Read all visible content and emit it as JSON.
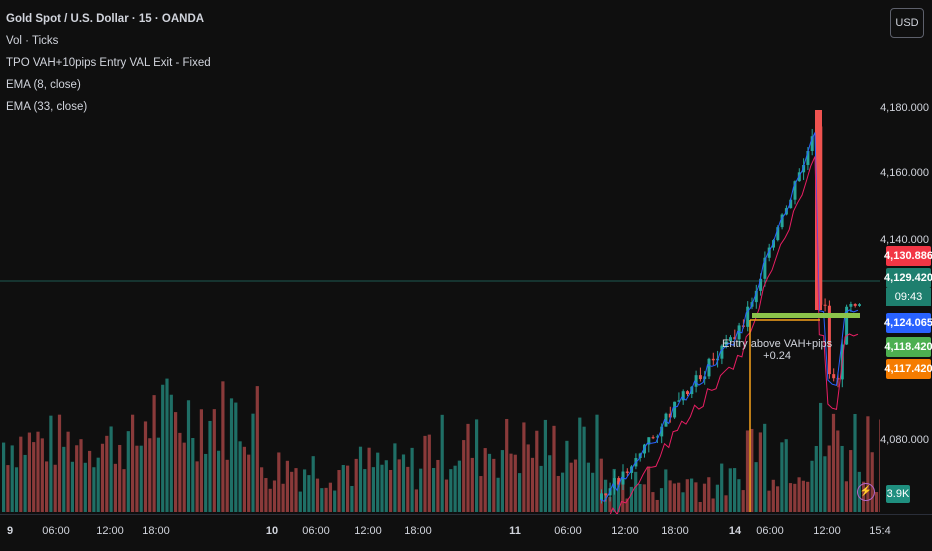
{
  "legend": {
    "title": "Gold Spot / U.S. Dollar · 15 · OANDA",
    "vol": "Vol · Ticks",
    "tpo": "TPO VAH+10pips Entry VAL Exit - Fixed",
    "ema8": "EMA (8, close)",
    "ema33": "EMA (33, close)"
  },
  "currency": "USD",
  "price_ticks": [
    "4,180.000",
    "4,160.000",
    "4,140.000",
    "4,080.000"
  ],
  "badges": {
    "b1": "4,130.886",
    "b2": "4,129.420",
    "timer": "09:43",
    "b3": "4,124.065",
    "b4": "4,118.420",
    "b5": "4,117.420",
    "volume": "3.9K"
  },
  "annotation": {
    "line1": "Entry above VAH+pips",
    "line2": "+0.24"
  },
  "time_labels": [
    {
      "t": "9",
      "major": true
    },
    {
      "t": "06:00"
    },
    {
      "t": "12:00"
    },
    {
      "t": "18:00"
    },
    {
      "t": "10",
      "major": true
    },
    {
      "t": "06:00"
    },
    {
      "t": "12:00"
    },
    {
      "t": "18:00"
    },
    {
      "t": "11",
      "major": true
    },
    {
      "t": "06:00"
    },
    {
      "t": "12:00"
    },
    {
      "t": "18:00"
    },
    {
      "t": "14",
      "major": true
    },
    {
      "t": "06:00"
    },
    {
      "t": "12:00"
    },
    {
      "t": "15:4"
    }
  ],
  "colors": {
    "up": "#26a69a",
    "down": "#ef5350",
    "vol_up": "#1f6f66",
    "vol_down": "#8a3a3a",
    "ema8": "#2962ff",
    "ema33": "#e91e63",
    "tpo": "#8bc34a",
    "entry": "#f7a21b"
  }
}
